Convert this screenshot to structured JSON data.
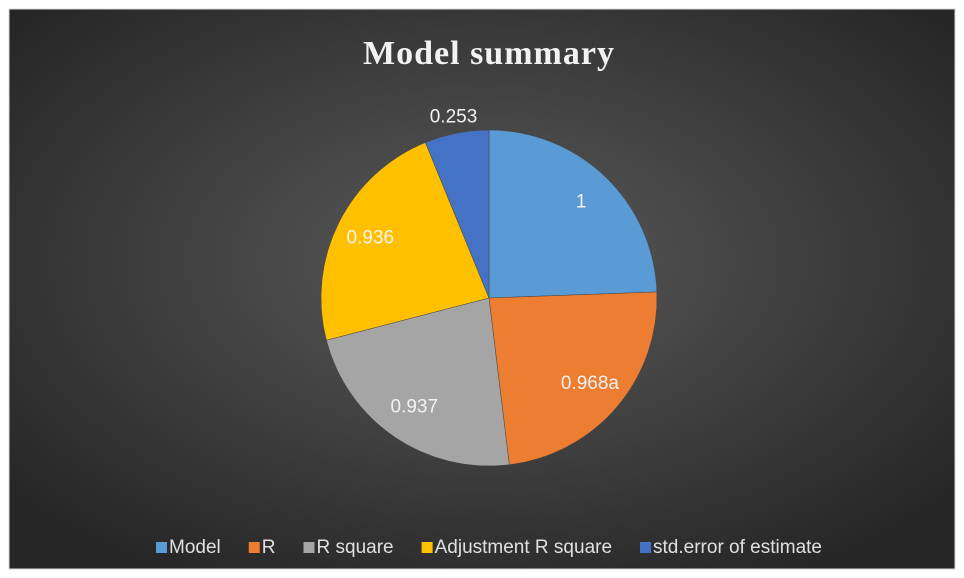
{
  "chart_data": {
    "type": "pie",
    "title": "Model summary",
    "categories": [
      "Model",
      "R",
      "R square",
      "Adjustment R square",
      "std.error of estimate"
    ],
    "values": [
      1,
      0.968,
      0.937,
      0.936,
      0.253
    ],
    "value_labels": [
      "1",
      "0.968a",
      "0.937",
      "0.936",
      "0.253"
    ],
    "colors": [
      "#5b9bd5",
      "#ed7d31",
      "#a5a5a5",
      "#ffc000",
      "#4472c4"
    ],
    "legend": "bottom"
  }
}
